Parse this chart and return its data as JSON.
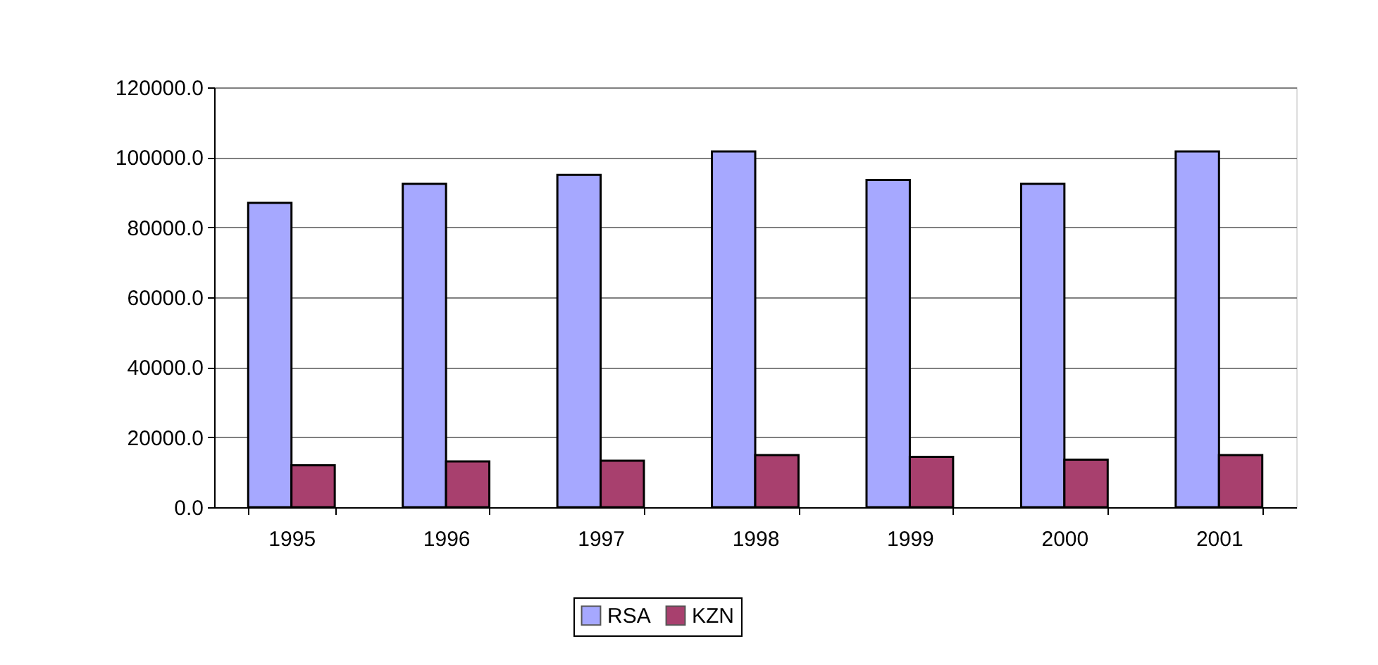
{
  "chart_data": {
    "type": "bar",
    "categories": [
      "1995",
      "1996",
      "1997",
      "1998",
      "1999",
      "2000",
      "2001"
    ],
    "series": [
      {
        "name": "RSA",
        "color": "#a6a8ff",
        "values": [
          87000,
          92400,
          95000,
          101700,
          93500,
          92400,
          101700
        ]
      },
      {
        "name": "KZN",
        "color": "#a8406e",
        "values": [
          12000,
          13100,
          13300,
          14900,
          14400,
          13600,
          14900
        ]
      }
    ],
    "ylim": [
      0,
      120000
    ],
    "yticks": [
      {
        "value": 0,
        "label": "0.0"
      },
      {
        "value": 20000,
        "label": "20000.0"
      },
      {
        "value": 40000,
        "label": "40000.0"
      },
      {
        "value": 60000,
        "label": "60000.0"
      },
      {
        "value": 80000,
        "label": "80000.0"
      },
      {
        "value": 100000,
        "label": "100000.0"
      },
      {
        "value": 120000,
        "label": "120000.0"
      }
    ],
    "grid": "y",
    "legend": "bottom"
  }
}
